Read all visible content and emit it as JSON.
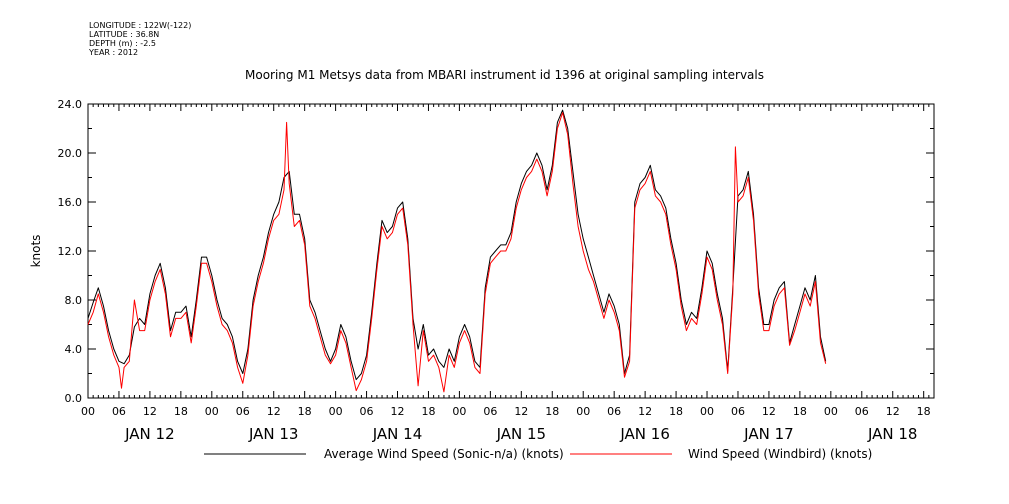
{
  "header": {
    "meta_lines": [
      "LONGITUDE : 122W(-122)",
      "LATITUDE : 36.8N",
      "DEPTH (m) : -2.5",
      "YEAR : 2012"
    ],
    "title": "Mooring M1 Metsys data from MBARI instrument id 1396 at original sampling intervals"
  },
  "chart_data": {
    "type": "line",
    "ylabel": "knots",
    "ylim": [
      0,
      24
    ],
    "yticks": [
      "0.0",
      "4.0",
      "8.0",
      "12.0",
      "16.0",
      "20.0",
      "24.0"
    ],
    "xlim_hours": [
      0,
      164
    ],
    "x_hour_labels": [
      "00",
      "06",
      "12",
      "18",
      "00",
      "06",
      "12",
      "18",
      "00",
      "06",
      "12",
      "18",
      "00",
      "06",
      "12",
      "18",
      "00",
      "06",
      "12",
      "18",
      "00",
      "06",
      "12",
      "18",
      "00",
      "06",
      "12",
      "18"
    ],
    "x_day_labels": [
      "JAN 12",
      "JAN 13",
      "JAN 14",
      "JAN 15",
      "JAN 16",
      "JAN 17",
      "JAN 18"
    ],
    "x_unit": "hours since JAN 12 00:00, 2012",
    "series": [
      {
        "name": "Average Wind Speed (Sonic-n/a) (knots)",
        "color": "#000000",
        "points": [
          [
            0,
            6.5
          ],
          [
            1,
            7.8
          ],
          [
            2,
            9.0
          ],
          [
            3,
            7.5
          ],
          [
            4,
            5.5
          ],
          [
            5,
            4.0
          ],
          [
            6,
            3.0
          ],
          [
            7,
            2.8
          ],
          [
            8,
            3.5
          ],
          [
            9,
            5.8
          ],
          [
            10,
            6.5
          ],
          [
            11,
            6.0
          ],
          [
            12,
            8.5
          ],
          [
            13,
            10.0
          ],
          [
            14,
            11.0
          ],
          [
            15,
            9.0
          ],
          [
            16,
            5.5
          ],
          [
            17,
            7.0
          ],
          [
            18,
            7.0
          ],
          [
            19,
            7.5
          ],
          [
            20,
            5.0
          ],
          [
            21,
            8.0
          ],
          [
            22,
            11.5
          ],
          [
            23,
            11.5
          ],
          [
            24,
            10.0
          ],
          [
            25,
            8.0
          ],
          [
            26,
            6.5
          ],
          [
            27,
            6.0
          ],
          [
            28,
            5.0
          ],
          [
            29,
            3.0
          ],
          [
            30,
            2.0
          ],
          [
            31,
            4.0
          ],
          [
            32,
            8.0
          ],
          [
            33,
            10.0
          ],
          [
            34,
            11.5
          ],
          [
            35,
            13.5
          ],
          [
            36,
            15.0
          ],
          [
            37,
            16.0
          ],
          [
            38,
            18.0
          ],
          [
            39,
            18.5
          ],
          [
            40,
            15.0
          ],
          [
            41,
            15.0
          ],
          [
            42,
            13.0
          ],
          [
            43,
            8.0
          ],
          [
            44,
            7.0
          ],
          [
            45,
            5.5
          ],
          [
            46,
            4.0
          ],
          [
            47,
            3.0
          ],
          [
            48,
            4.0
          ],
          [
            49,
            6.0
          ],
          [
            50,
            5.0
          ],
          [
            51,
            3.0
          ],
          [
            52,
            1.5
          ],
          [
            53,
            2.0
          ],
          [
            54,
            3.5
          ],
          [
            55,
            7.0
          ],
          [
            56,
            11.0
          ],
          [
            57,
            14.5
          ],
          [
            58,
            13.5
          ],
          [
            59,
            14.0
          ],
          [
            60,
            15.5
          ],
          [
            61,
            16.0
          ],
          [
            62,
            13.0
          ],
          [
            63,
            6.5
          ],
          [
            64,
            4.0
          ],
          [
            65,
            6.0
          ],
          [
            66,
            3.5
          ],
          [
            67,
            4.0
          ],
          [
            68,
            3.0
          ],
          [
            69,
            2.5
          ],
          [
            70,
            4.0
          ],
          [
            71,
            3.0
          ],
          [
            72,
            5.0
          ],
          [
            73,
            6.0
          ],
          [
            74,
            5.0
          ],
          [
            75,
            3.0
          ],
          [
            76,
            2.5
          ],
          [
            77,
            9.0
          ],
          [
            78,
            11.5
          ],
          [
            79,
            12.0
          ],
          [
            80,
            12.5
          ],
          [
            81,
            12.5
          ],
          [
            82,
            13.5
          ],
          [
            83,
            16.0
          ],
          [
            84,
            17.5
          ],
          [
            85,
            18.5
          ],
          [
            86,
            19.0
          ],
          [
            87,
            20.0
          ],
          [
            88,
            19.0
          ],
          [
            89,
            17.0
          ],
          [
            90,
            19.0
          ],
          [
            91,
            22.5
          ],
          [
            92,
            23.5
          ],
          [
            93,
            22.0
          ],
          [
            94,
            18.5
          ],
          [
            95,
            15.0
          ],
          [
            96,
            13.0
          ],
          [
            97,
            11.5
          ],
          [
            98,
            10.0
          ],
          [
            99,
            8.5
          ],
          [
            100,
            7.0
          ],
          [
            101,
            8.5
          ],
          [
            102,
            7.5
          ],
          [
            103,
            6.0
          ],
          [
            104,
            2.0
          ],
          [
            105,
            3.5
          ],
          [
            106,
            16.0
          ],
          [
            107,
            17.5
          ],
          [
            108,
            18.0
          ],
          [
            109,
            19.0
          ],
          [
            110,
            17.0
          ],
          [
            111,
            16.5
          ],
          [
            112,
            15.5
          ],
          [
            113,
            13.0
          ],
          [
            114,
            11.0
          ],
          [
            115,
            8.0
          ],
          [
            116,
            6.0
          ],
          [
            117,
            7.0
          ],
          [
            118,
            6.5
          ],
          [
            119,
            9.0
          ],
          [
            120,
            12.0
          ],
          [
            121,
            11.0
          ],
          [
            122,
            8.5
          ],
          [
            123,
            6.5
          ],
          [
            124,
            2.2
          ],
          [
            125,
            9.0
          ],
          [
            126,
            16.5
          ],
          [
            127,
            17.0
          ],
          [
            128,
            18.5
          ],
          [
            129,
            15.0
          ],
          [
            130,
            9.0
          ],
          [
            131,
            6.0
          ],
          [
            132,
            6.0
          ],
          [
            133,
            8.0
          ],
          [
            134,
            9.0
          ],
          [
            135,
            9.5
          ],
          [
            136,
            4.5
          ],
          [
            137,
            6.0
          ],
          [
            138,
            7.5
          ],
          [
            139,
            9.0
          ],
          [
            140,
            8.0
          ],
          [
            141,
            10.0
          ],
          [
            142,
            5.0
          ],
          [
            143,
            3.0
          ]
        ]
      },
      {
        "name": "Wind Speed (Windbird) (knots)",
        "color": "#ff0000",
        "points": [
          [
            0,
            6.0
          ],
          [
            1,
            7.0
          ],
          [
            2,
            8.5
          ],
          [
            3,
            7.0
          ],
          [
            4,
            5.0
          ],
          [
            5,
            3.5
          ],
          [
            6,
            2.5
          ],
          [
            6.5,
            0.8
          ],
          [
            7,
            2.5
          ],
          [
            8,
            3.0
          ],
          [
            9,
            8.0
          ],
          [
            10,
            5.5
          ],
          [
            11,
            5.5
          ],
          [
            12,
            8.0
          ],
          [
            13,
            9.5
          ],
          [
            14,
            10.5
          ],
          [
            15,
            8.5
          ],
          [
            16,
            5.0
          ],
          [
            17,
            6.5
          ],
          [
            18,
            6.5
          ],
          [
            19,
            7.0
          ],
          [
            20,
            4.5
          ],
          [
            21,
            7.5
          ],
          [
            22,
            11.0
          ],
          [
            23,
            11.0
          ],
          [
            24,
            9.5
          ],
          [
            25,
            7.5
          ],
          [
            26,
            6.0
          ],
          [
            27,
            5.5
          ],
          [
            28,
            4.5
          ],
          [
            29,
            2.5
          ],
          [
            30,
            1.2
          ],
          [
            31,
            3.5
          ],
          [
            32,
            7.5
          ],
          [
            33,
            9.5
          ],
          [
            34,
            11.0
          ],
          [
            35,
            13.0
          ],
          [
            36,
            14.5
          ],
          [
            37,
            15.0
          ],
          [
            38,
            17.0
          ],
          [
            38.5,
            22.5
          ],
          [
            39,
            17.5
          ],
          [
            40,
            14.0
          ],
          [
            41,
            14.5
          ],
          [
            42,
            12.5
          ],
          [
            43,
            7.5
          ],
          [
            44,
            6.5
          ],
          [
            45,
            5.0
          ],
          [
            46,
            3.5
          ],
          [
            47,
            2.8
          ],
          [
            48,
            3.5
          ],
          [
            49,
            5.5
          ],
          [
            50,
            4.5
          ],
          [
            51,
            2.5
          ],
          [
            52,
            0.6
          ],
          [
            53,
            1.5
          ],
          [
            54,
            3.0
          ],
          [
            55,
            6.5
          ],
          [
            56,
            10.5
          ],
          [
            57,
            14.0
          ],
          [
            58,
            13.0
          ],
          [
            59,
            13.5
          ],
          [
            60,
            15.0
          ],
          [
            61,
            15.5
          ],
          [
            62,
            12.5
          ],
          [
            63,
            6.0
          ],
          [
            64,
            1.0
          ],
          [
            65,
            5.5
          ],
          [
            66,
            3.0
          ],
          [
            67,
            3.5
          ],
          [
            68,
            2.5
          ],
          [
            69,
            0.5
          ],
          [
            70,
            3.5
          ],
          [
            71,
            2.5
          ],
          [
            72,
            4.5
          ],
          [
            73,
            5.5
          ],
          [
            74,
            4.5
          ],
          [
            75,
            2.5
          ],
          [
            76,
            2.0
          ],
          [
            77,
            8.5
          ],
          [
            78,
            11.0
          ],
          [
            79,
            11.5
          ],
          [
            80,
            12.0
          ],
          [
            81,
            12.0
          ],
          [
            82,
            13.0
          ],
          [
            83,
            15.5
          ],
          [
            84,
            17.0
          ],
          [
            85,
            18.0
          ],
          [
            86,
            18.5
          ],
          [
            87,
            19.5
          ],
          [
            88,
            18.5
          ],
          [
            89,
            16.5
          ],
          [
            90,
            18.5
          ],
          [
            91,
            22.0
          ],
          [
            92,
            23.3
          ],
          [
            93,
            21.5
          ],
          [
            94,
            17.5
          ],
          [
            95,
            14.0
          ],
          [
            96,
            12.0
          ],
          [
            97,
            10.5
          ],
          [
            98,
            9.5
          ],
          [
            99,
            8.0
          ],
          [
            100,
            6.5
          ],
          [
            101,
            8.0
          ],
          [
            102,
            7.0
          ],
          [
            103,
            5.5
          ],
          [
            104,
            1.7
          ],
          [
            105,
            3.0
          ],
          [
            106,
            15.5
          ],
          [
            107,
            17.0
          ],
          [
            108,
            17.5
          ],
          [
            109,
            18.5
          ],
          [
            110,
            16.5
          ],
          [
            111,
            16.0
          ],
          [
            112,
            15.0
          ],
          [
            113,
            12.5
          ],
          [
            114,
            10.5
          ],
          [
            115,
            7.5
          ],
          [
            116,
            5.5
          ],
          [
            117,
            6.5
          ],
          [
            118,
            6.0
          ],
          [
            119,
            8.5
          ],
          [
            120,
            11.5
          ],
          [
            121,
            10.5
          ],
          [
            122,
            8.0
          ],
          [
            123,
            6.0
          ],
          [
            124,
            2.0
          ],
          [
            125,
            8.5
          ],
          [
            125.5,
            20.5
          ],
          [
            126,
            16.0
          ],
          [
            127,
            16.5
          ],
          [
            128,
            18.0
          ],
          [
            129,
            14.5
          ],
          [
            130,
            8.5
          ],
          [
            131,
            5.5
          ],
          [
            132,
            5.5
          ],
          [
            133,
            7.5
          ],
          [
            134,
            8.5
          ],
          [
            135,
            9.0
          ],
          [
            136,
            4.3
          ],
          [
            137,
            5.5
          ],
          [
            138,
            7.0
          ],
          [
            139,
            8.5
          ],
          [
            140,
            7.5
          ],
          [
            141,
            9.5
          ],
          [
            142,
            4.5
          ],
          [
            143,
            2.8
          ]
        ]
      }
    ],
    "grid": false,
    "legend_placement": "bottom"
  }
}
